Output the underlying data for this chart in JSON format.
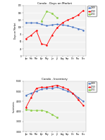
{
  "title1": "Condo - Days on Market",
  "title2": "Condo - Inventory",
  "months": [
    "Jan",
    "Feb",
    "Mar",
    "Apr",
    "May",
    "Jun",
    "Jul",
    "Aug",
    "Sep",
    "Oct",
    "Nov",
    "Dec"
  ],
  "dom": {
    "2009": [
      115,
      115,
      115,
      110,
      105,
      108,
      110,
      108,
      105,
      100,
      95,
      90
    ],
    "2010": [
      60,
      72,
      88,
      42,
      38,
      72,
      98,
      115,
      125,
      132,
      142,
      158
    ],
    "2011": [
      null,
      null,
      null,
      122,
      155,
      148,
      132,
      null,
      null,
      null,
      null,
      null
    ]
  },
  "dom_ylim": [
    0,
    175
  ],
  "dom_yticks": [
    0,
    25,
    50,
    75,
    100,
    125,
    150,
    175
  ],
  "inv": {
    "2009": [
      4800,
      4900,
      5000,
      5100,
      5150,
      5150,
      5200,
      5100,
      5000,
      4900,
      4700,
      4500
    ],
    "2010": [
      4200,
      4700,
      5150,
      5200,
      5200,
      5250,
      5300,
      5200,
      5100,
      4900,
      4600,
      4300
    ],
    "2011": [
      4100,
      4050,
      4050,
      4050,
      4000,
      3850,
      3700,
      null,
      null,
      null,
      null,
      null
    ]
  },
  "inv_ylim": [
    3000,
    5500
  ],
  "inv_yticks": [
    3000,
    3500,
    4000,
    4500,
    5000,
    5500
  ],
  "color_2009": "#4472C4",
  "color_2010": "#FF0000",
  "color_2011": "#92D050",
  "ylabel1": "Days on Market",
  "ylabel2": "Inventories",
  "legend_labels": [
    "2009",
    "2010",
    "2011"
  ],
  "bg_color": "#F2F2F2"
}
